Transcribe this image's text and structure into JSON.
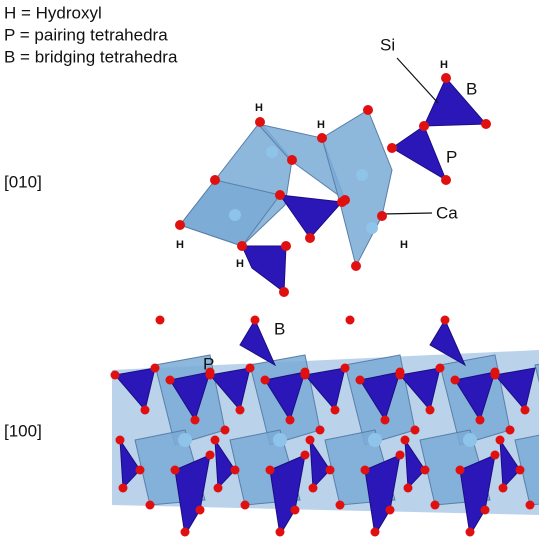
{
  "legend": [
    "H = Hydroxyl",
    "P = pairing tetrahedra",
    "B = bridging tetrahedra"
  ],
  "top_view": {
    "label": "[010]",
    "callouts": {
      "si": "Si",
      "b": "B",
      "p": "P",
      "ca": "Ca"
    },
    "hydroxyl_labels": [
      "H",
      "H",
      "H",
      "H",
      "H",
      "H"
    ]
  },
  "side_view": {
    "label": "[100]",
    "callouts": {
      "b": "B",
      "p": "P"
    }
  }
}
